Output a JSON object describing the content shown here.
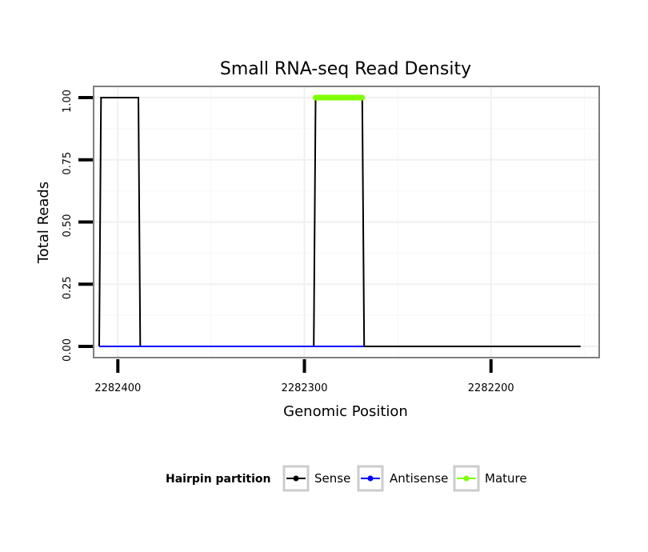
{
  "chart_data": {
    "type": "line",
    "title": "Small RNA-seq Read Density",
    "xlabel": "Genomic Position",
    "ylabel": "Total Reads",
    "x_reversed": true,
    "xlim": [
      2282413,
      2282142
    ],
    "ylim": [
      -0.045,
      1.045
    ],
    "x_ticks": [
      2282400,
      2282300,
      2282200
    ],
    "x_tick_labels": [
      "2282400",
      "2282300",
      "2282200"
    ],
    "y_ticks": [
      0,
      0.25,
      0.5,
      0.75,
      1.0
    ],
    "y_tick_labels": [
      "0.00",
      "0.25",
      "0.50",
      "0.75",
      "1.00"
    ],
    "grid": true,
    "legend": {
      "title": "Hairpin partition",
      "position": "bottom",
      "entries": [
        {
          "label": "Sense",
          "color": "#000000"
        },
        {
          "label": "Antisense",
          "color": "#0000ff"
        },
        {
          "label": "Mature",
          "color": "#7fff00"
        }
      ]
    },
    "series": [
      {
        "name": "Sense",
        "color": "#000000",
        "x": [
          2282410,
          2282409,
          2282389,
          2282388,
          2282295,
          2282294,
          2282269,
          2282268,
          2282152
        ],
        "y": [
          0,
          1,
          1,
          0,
          0,
          1,
          1,
          0,
          0
        ]
      },
      {
        "name": "Antisense",
        "color": "#0000ff",
        "x": [
          2282410,
          2282388,
          2282294,
          2282268
        ],
        "y": [
          0,
          0,
          0,
          0
        ]
      },
      {
        "name": "Mature",
        "color": "#7fff00",
        "x": [
          2282294,
          2282269
        ],
        "y": [
          1,
          1
        ]
      }
    ]
  }
}
